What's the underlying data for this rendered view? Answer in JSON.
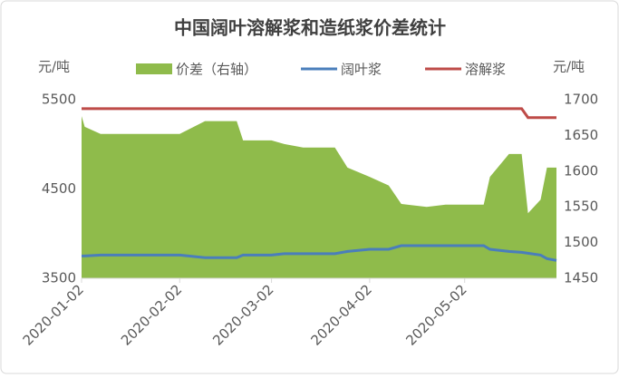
{
  "chart_data": {
    "type": "area-line",
    "title": "中国阔叶溶解浆和造纸浆价差统计",
    "y_label": "元/吨",
    "y2_label": "元/吨",
    "x": [
      "2020-01-02",
      "2020-01-03",
      "2020-01-08",
      "2020-01-20",
      "2020-02-02",
      "2020-02-10",
      "2020-02-20",
      "2020-02-22",
      "2020-03-02",
      "2020-03-06",
      "2020-03-12",
      "2020-03-22",
      "2020-03-26",
      "2020-04-02",
      "2020-04-08",
      "2020-04-12",
      "2020-04-20",
      "2020-04-26",
      "2020-05-02",
      "2020-05-08",
      "2020-05-10",
      "2020-05-16",
      "2020-05-20",
      "2020-05-22",
      "2020-05-26",
      "2020-05-28",
      "2020-05-31"
    ],
    "xlim": [
      "2020-01-02",
      "2020-05-31"
    ],
    "xticks": [
      "2020-01-02",
      "2020-02-02",
      "2020-03-02",
      "2020-04-02",
      "2020-05-02"
    ],
    "ylim": [
      3500,
      5500
    ],
    "yticks": [
      3500,
      4500,
      5500
    ],
    "y2lim": [
      1450,
      1700
    ],
    "y2ticks": [
      1450,
      1500,
      1550,
      1600,
      1650,
      1700
    ],
    "grid": false,
    "series": [
      {
        "name": "价差（右轴）",
        "type": "area",
        "axis": "y2",
        "color": "#8fbb4b",
        "values": [
          1677,
          1662,
          1652,
          1652,
          1652,
          1670,
          1670,
          1643,
          1643,
          1638,
          1633,
          1633,
          1605,
          1592,
          1580,
          1554,
          1550,
          1553,
          1553,
          1553,
          1592,
          1624,
          1624,
          1541,
          1560,
          1605,
          1605
        ]
      },
      {
        "name": "阔叶浆",
        "type": "line",
        "color": "#4a7ebb",
        "values": [
          3750,
          3750,
          3760,
          3760,
          3760,
          3730,
          3730,
          3760,
          3760,
          3775,
          3775,
          3775,
          3800,
          3825,
          3825,
          3865,
          3865,
          3865,
          3865,
          3865,
          3825,
          3800,
          3790,
          3780,
          3760,
          3720,
          3700
        ]
      },
      {
        "name": "溶解浆",
        "type": "line",
        "color": "#be4b48",
        "values": [
          5400,
          5400,
          5400,
          5400,
          5400,
          5400,
          5400,
          5400,
          5400,
          5400,
          5400,
          5400,
          5400,
          5400,
          5400,
          5400,
          5400,
          5400,
          5400,
          5400,
          5400,
          5400,
          5400,
          5300,
          5300,
          5300,
          5300
        ]
      }
    ]
  }
}
